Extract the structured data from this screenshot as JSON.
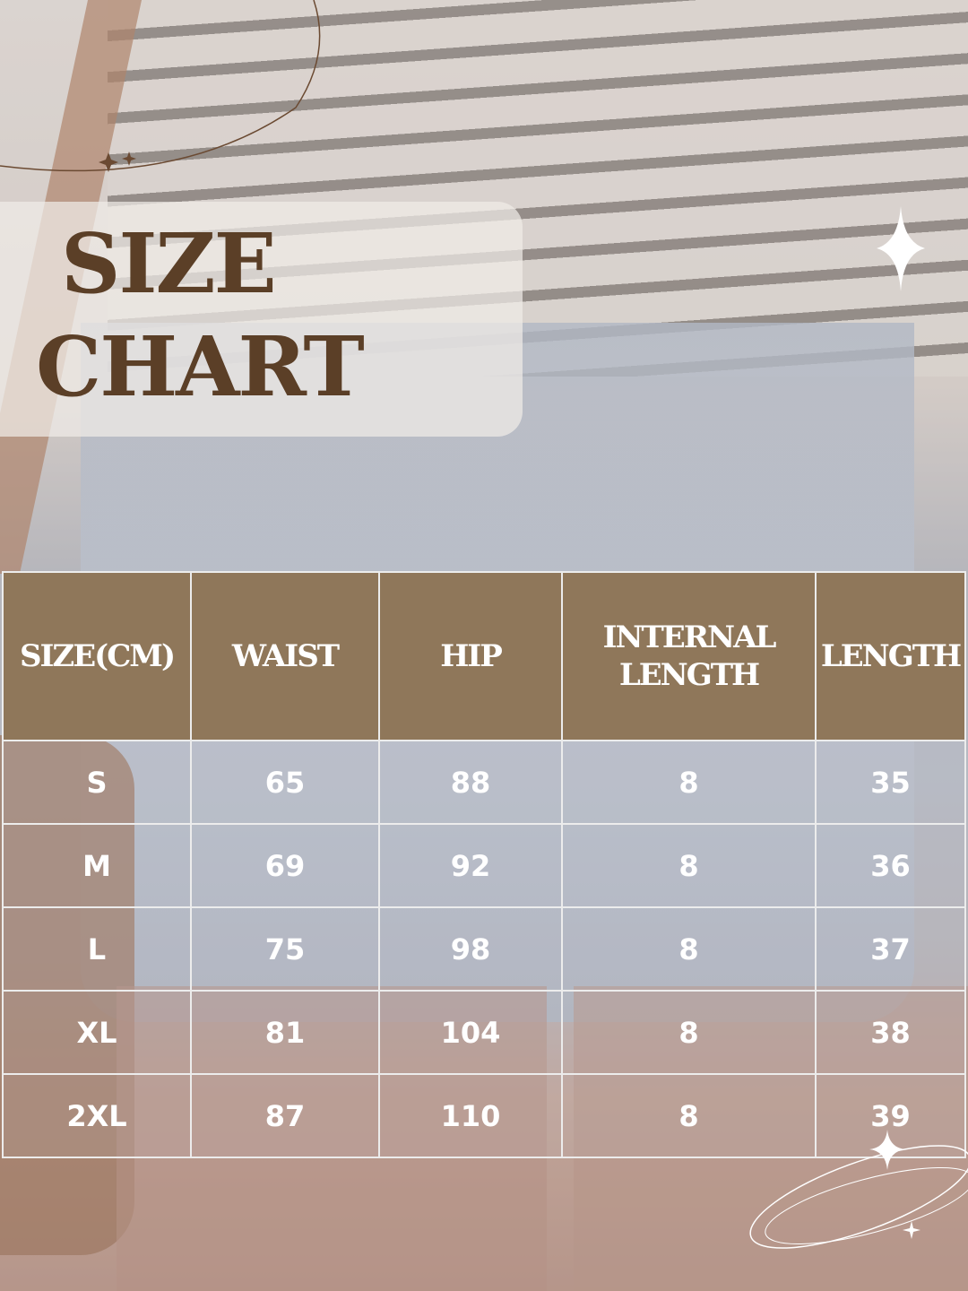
{
  "title": {
    "line1": "SIZE",
    "line2": "CHART"
  },
  "table": {
    "headers": [
      "SIZE(CM)",
      "WAIST",
      "HIP",
      "INTERNAL LENGTH",
      "LENGTH"
    ],
    "rows": [
      [
        "S",
        "65",
        "88",
        "8",
        "35"
      ],
      [
        "M",
        "69",
        "92",
        "8",
        "36"
      ],
      [
        "L",
        "75",
        "98",
        "8",
        "37"
      ],
      [
        "XL",
        "81",
        "104",
        "8",
        "38"
      ],
      [
        "2XL",
        "87",
        "110",
        "8",
        "39"
      ]
    ]
  },
  "colors": {
    "header": "#8f775a",
    "title": "#5b3f27"
  }
}
